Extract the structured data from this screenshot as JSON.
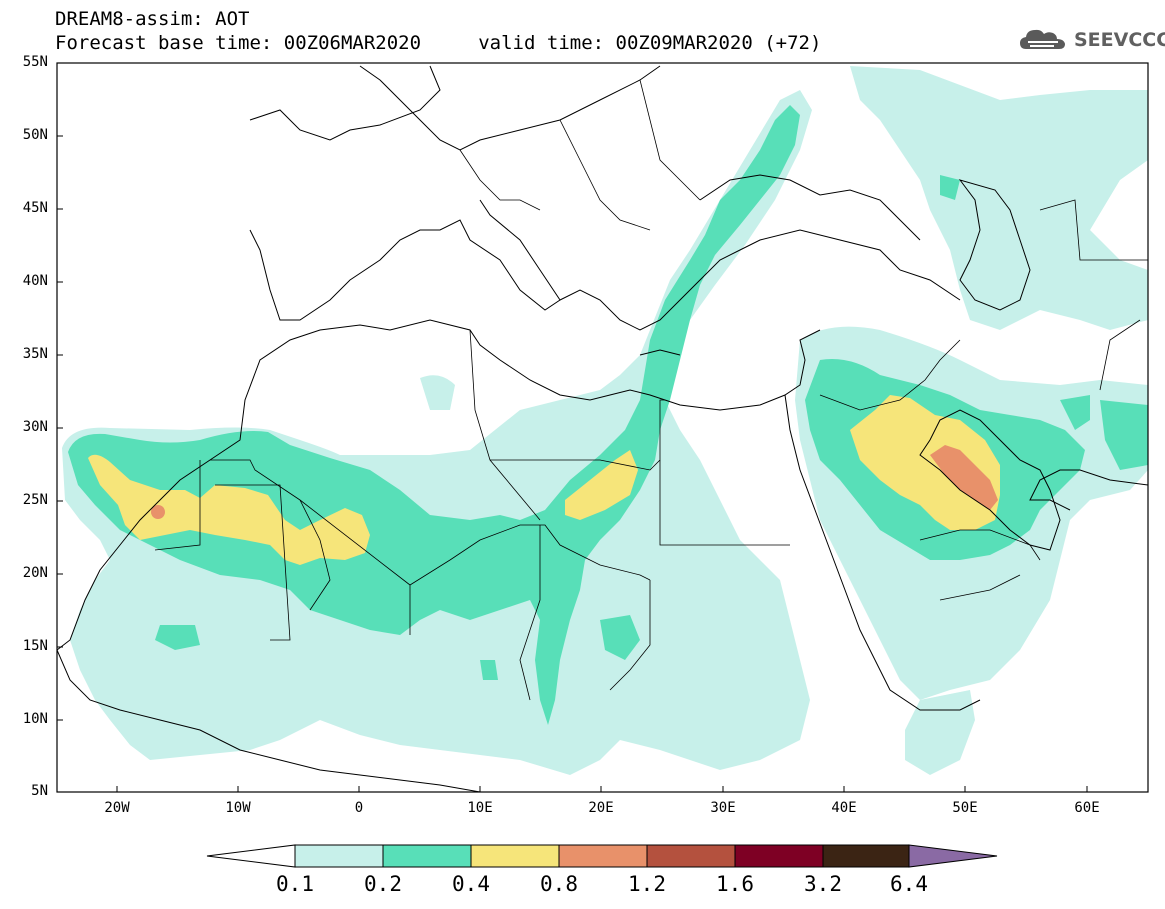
{
  "header": {
    "title_line1": "DREAM8-assim: AOT",
    "title_line2": "Forecast base time: 00Z06MAR2020     valid time: 00Z09MAR2020 (+72)",
    "logo_text": "SEEVCCC",
    "logo_icon": "cloud-logo-icon"
  },
  "map": {
    "projection": "lat-lon",
    "lon_range": [
      -25,
      65
    ],
    "lat_range": [
      5,
      55
    ],
    "lat_labels": [
      "55N",
      "50N",
      "45N",
      "40N",
      "35N",
      "30N",
      "25N",
      "20N",
      "15N",
      "10N",
      "5N"
    ],
    "lon_labels": [
      "20W",
      "10W",
      "0",
      "10E",
      "20E",
      "30E",
      "40E",
      "50E",
      "60E"
    ],
    "field": "Aerosol optical thickness (AOT)",
    "regions": [
      {
        "level": "0.1-0.2",
        "area": "broad Sahara / Sahel haze from W Africa coast to Red Sea"
      },
      {
        "level": "0.2-0.4",
        "area": "band across Mauritania, Mali, Niger, Chad, Libya; plume Egypt-Aegean-Black Sea; Arabian Peninsula & Persian Gulf"
      },
      {
        "level": "0.4-0.8",
        "area": "W Sahara coast, Mauritania, E Libya, Iraq-Kuwait-NE Arabia"
      },
      {
        "level": "0.8-1.2",
        "area": "spots near W Sahara coast and over Kuwait / Persian Gulf"
      }
    ]
  },
  "colorbar": {
    "labels": [
      "0.1",
      "0.2",
      "0.4",
      "0.8",
      "1.2",
      "1.6",
      "3.2",
      "6.4"
    ],
    "colors": [
      "#ffffff",
      "#c7f0ea",
      "#58dfb8",
      "#f6e57a",
      "#e8916a",
      "#b4513e",
      "#7e0024",
      "#3b2414",
      "#8a6aa4"
    ]
  }
}
